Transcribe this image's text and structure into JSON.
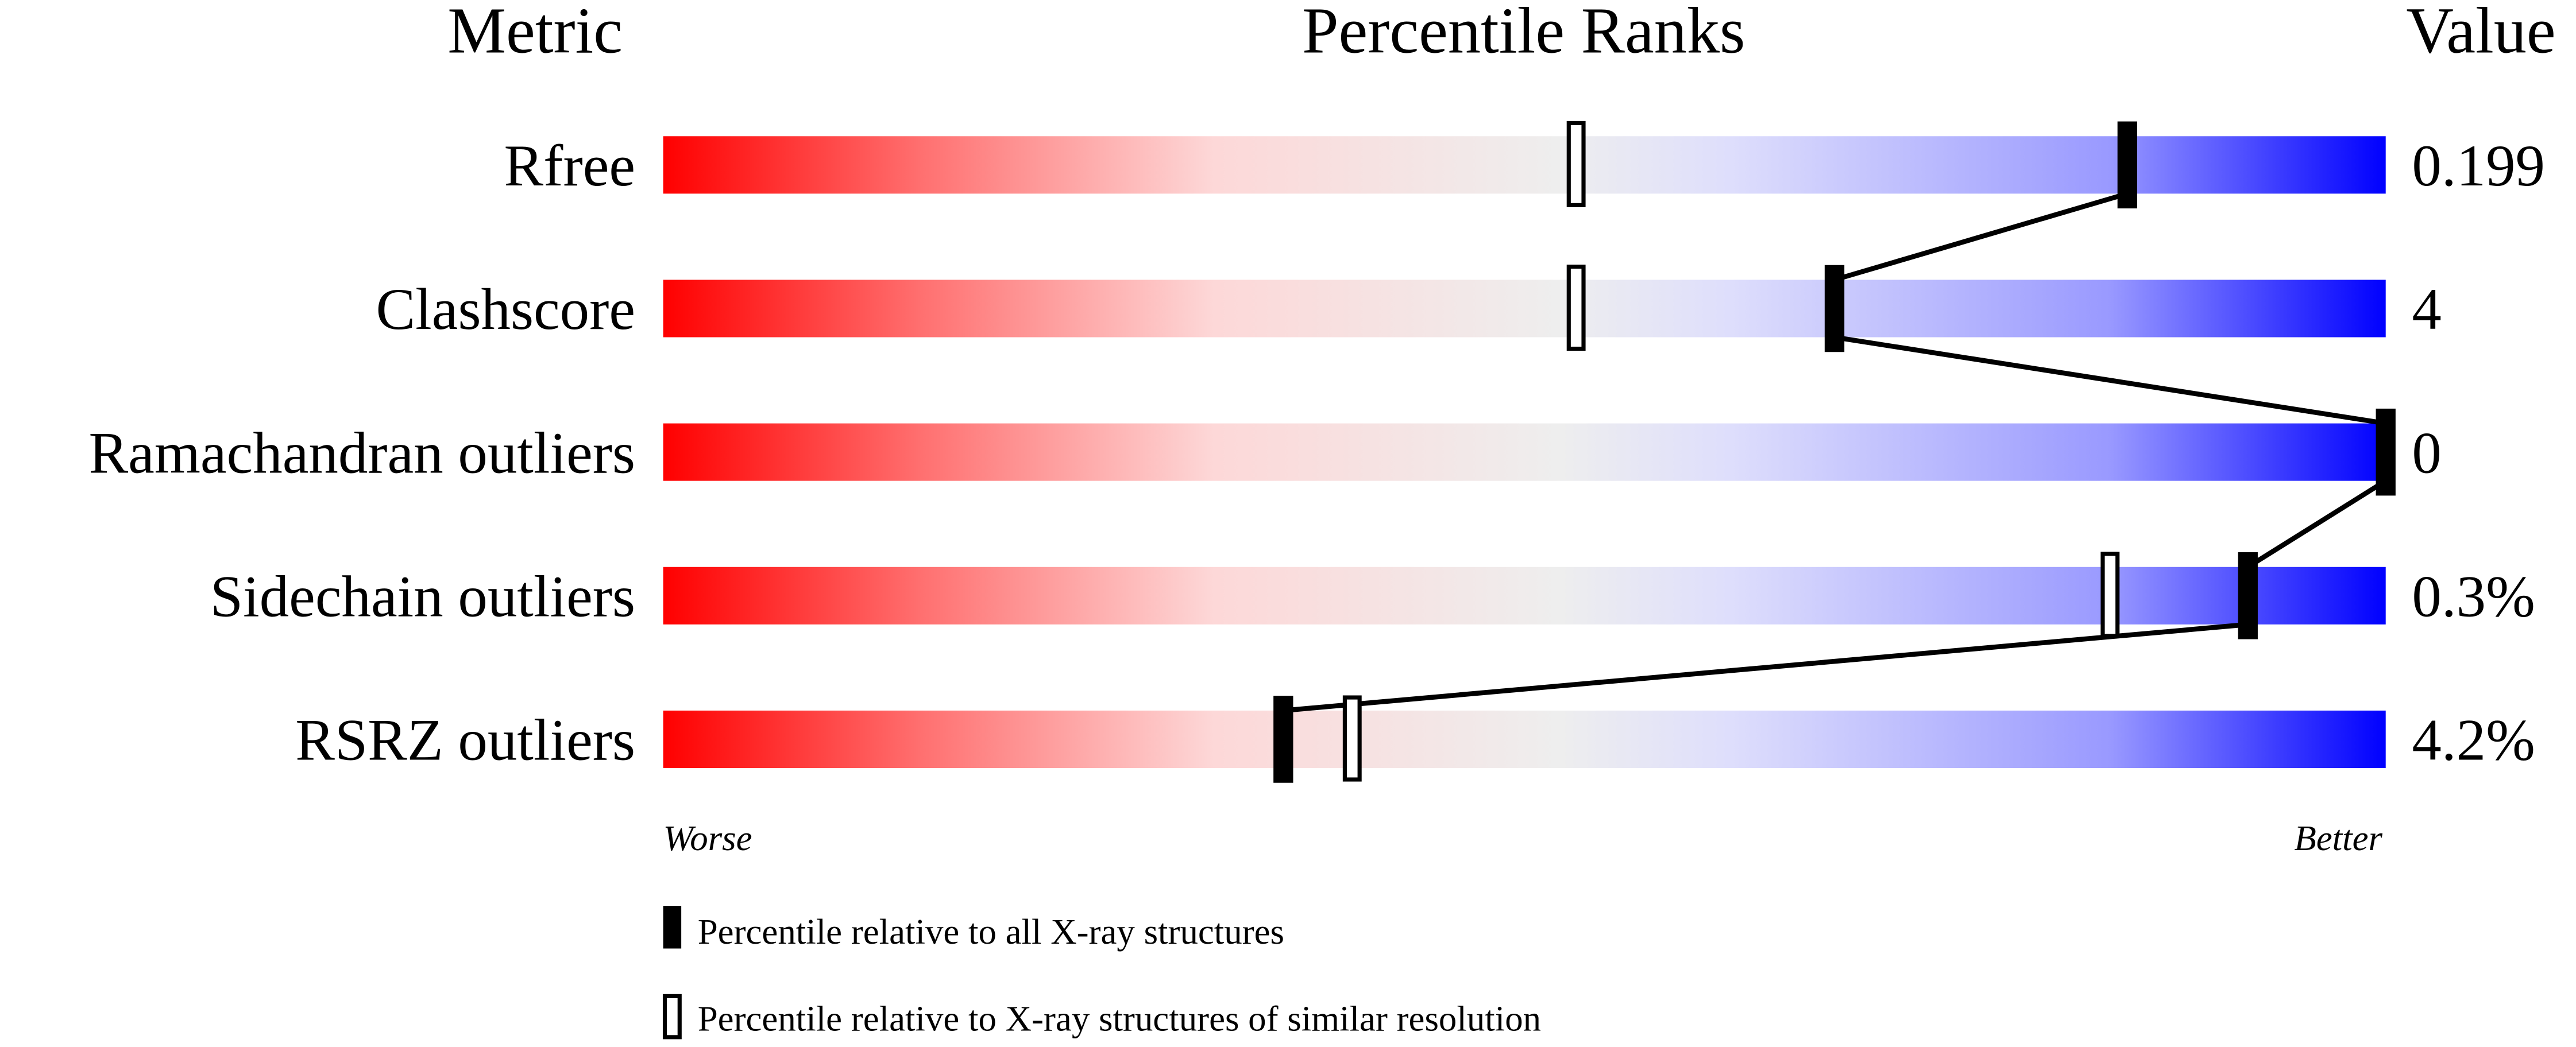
{
  "chart_data": {
    "type": "percentile-bar",
    "headers": {
      "metric": "Metric",
      "ranks": "Percentile Ranks",
      "value": "Value"
    },
    "xlim": [
      0,
      100
    ],
    "axis_labels": {
      "left": "Worse",
      "right": "Better"
    },
    "gradient_colors": [
      "#ff0000",
      "#ff7070",
      "#fdd8d8",
      "#eeeeee",
      "#dedefc",
      "#9999ff",
      "#0000ff"
    ],
    "metrics": [
      {
        "name": "Rfree",
        "value": "0.199",
        "percentile_all": 85,
        "percentile_similar": 53
      },
      {
        "name": "Clashscore",
        "value": "4",
        "percentile_all": 68,
        "percentile_similar": 53
      },
      {
        "name": "Ramachandran outliers",
        "value": "0",
        "percentile_all": 100,
        "percentile_similar": 100
      },
      {
        "name": "Sidechain outliers",
        "value": "0.3%",
        "percentile_all": 92,
        "percentile_similar": 84
      },
      {
        "name": "RSRZ outliers",
        "value": "4.2%",
        "percentile_all": 36,
        "percentile_similar": 40
      }
    ],
    "legend": [
      {
        "marker": "filled",
        "label": "Percentile relative to all X-ray structures"
      },
      {
        "marker": "open",
        "label": "Percentile relative to X-ray structures of similar resolution"
      }
    ]
  }
}
